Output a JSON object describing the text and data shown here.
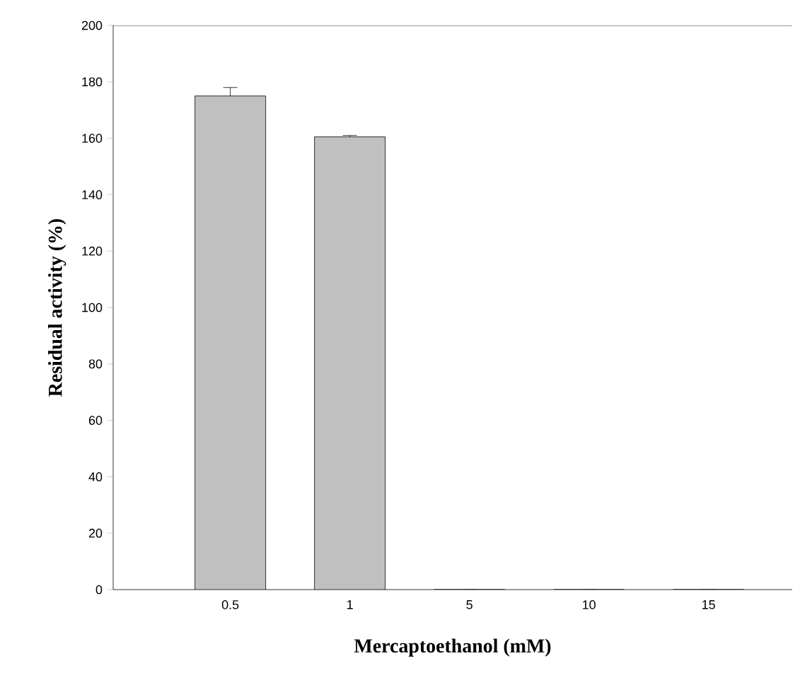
{
  "chart_data": {
    "type": "bar",
    "xlabel": "Mercaptoethanol (mM)",
    "ylabel": "Residual activity (%)",
    "categories": [
      "0.5",
      "1",
      "5",
      "10",
      "15"
    ],
    "values": [
      175,
      160.5,
      0,
      0,
      0
    ],
    "errors": [
      3,
      0.5,
      null,
      null,
      null
    ],
    "color": "#c0c0c0",
    "ylim": [
      0,
      200
    ],
    "yticks": [
      0,
      20,
      40,
      60,
      80,
      100,
      120,
      140,
      160,
      180,
      200
    ],
    "grid": false
  }
}
